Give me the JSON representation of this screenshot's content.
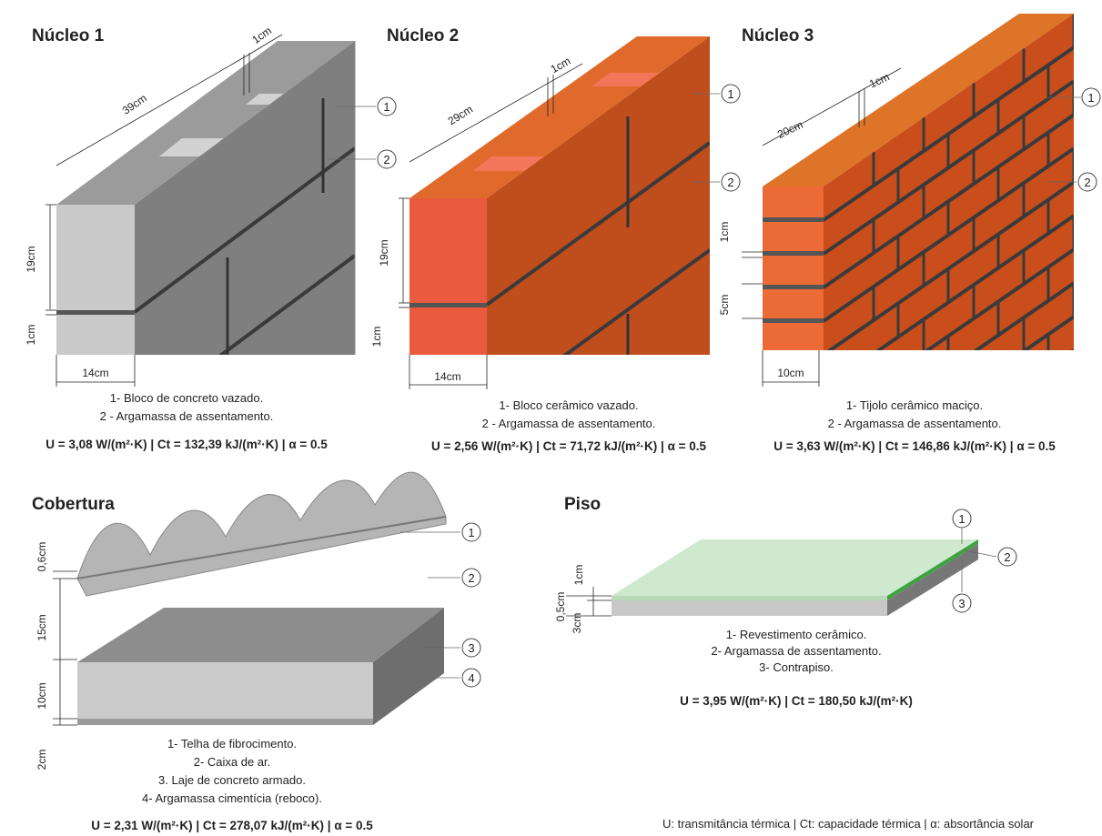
{
  "panels": [
    {
      "title": "Núcleo 1",
      "dimensions": [
        "1cm",
        "39cm",
        "19cm",
        "1cm",
        "14cm"
      ],
      "callouts": [
        "1",
        "2"
      ],
      "legend": [
        "1- Bloco de concreto vazado.",
        "2 - Argamassa de assentamento."
      ],
      "properties": "U = 3,08 W/(m²·K) | Ct = 132,39 kJ/(m²·K) | α = 0.5"
    },
    {
      "title": "Núcleo 2",
      "dimensions": [
        "1cm",
        "29cm",
        "19cm",
        "1cm",
        "14cm"
      ],
      "callouts": [
        "1",
        "2"
      ],
      "legend": [
        "1- Bloco cerâmico vazado.",
        "2 - Argamassa de assentamento."
      ],
      "properties": "U = 2,56 W/(m²·K) | Ct = 71,72 kJ/(m²·K) | α = 0.5"
    },
    {
      "title": "Núcleo 3",
      "dimensions": [
        "1cm",
        "20cm",
        "1cm",
        "5cm",
        "10cm"
      ],
      "callouts": [
        "1",
        "2"
      ],
      "legend": [
        "1- Tijolo cerâmico maciço.",
        "2 - Argamassa de assentamento."
      ],
      "properties": "U = 3,63 W/(m²·K) | Ct = 146,86 kJ/(m²·K) | α = 0.5"
    },
    {
      "title": "Cobertura",
      "dimensions": [
        "0,6cm",
        "15cm",
        "10cm",
        "2cm"
      ],
      "callouts": [
        "1",
        "2",
        "3",
        "4"
      ],
      "legend": [
        "1- Telha de fibrocimento.",
        "2- Caixa de ar.",
        "3. Laje de concreto armado.",
        "4- Argamassa cimentícia (reboco)."
      ],
      "properties": "U = 2,31 W/(m²·K) | Ct = 278,07 kJ/(m²·K) | α = 0.5"
    },
    {
      "title": "Piso",
      "dimensions": [
        "1cm",
        "0,5cm",
        "3cm"
      ],
      "callouts": [
        "1",
        "2",
        "3"
      ],
      "legend": [
        "1- Revestimento cerâmico.",
        "2- Argamassa de assentamento.",
        "3- Contrapiso."
      ],
      "properties": "U = 3,95 W/(m²·K) | Ct = 180,50 kJ/(m²·K)"
    }
  ],
  "footnote": "U: transmitância térmica | Ct: capacidade térmica | α: absortância solar"
}
